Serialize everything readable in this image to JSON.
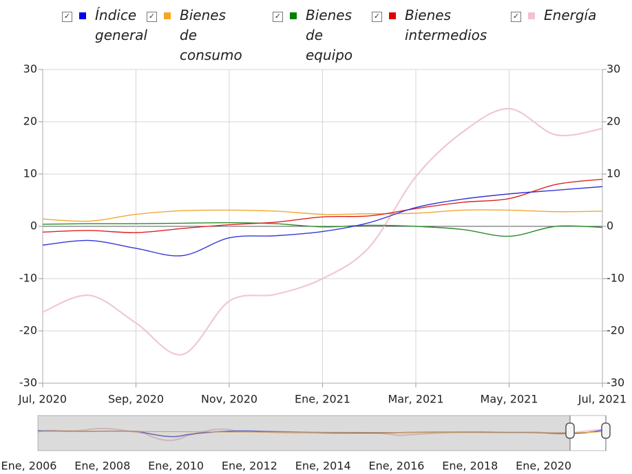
{
  "chart_data": {
    "type": "line",
    "categories": [
      "Jul, 2020",
      null,
      "Sep, 2020",
      null,
      "Nov, 2020",
      null,
      "Ene, 2021",
      null,
      "Mar, 2021",
      null,
      "May, 2021",
      null,
      "Jul, 2021"
    ],
    "series": [
      {
        "name": "Índice general",
        "color": "#3535d8",
        "legend_color": "#0000ee",
        "values": [
          -3.6,
          -2.7,
          -4.2,
          -5.6,
          -2.2,
          -1.8,
          -1.0,
          0.7,
          3.6,
          5.2,
          6.2,
          6.9,
          7.6
        ]
      },
      {
        "name": "Bienes de consumo",
        "color": "#f0a830",
        "legend_color": "#f5a623",
        "values": [
          1.4,
          1.0,
          2.3,
          3.0,
          3.1,
          2.9,
          2.3,
          2.4,
          2.5,
          3.1,
          3.1,
          2.8,
          2.9
        ]
      },
      {
        "name": "Bienes de equipo",
        "color": "#2a8a2a",
        "legend_color": "#008000",
        "values": [
          0.4,
          0.5,
          0.5,
          0.6,
          0.7,
          0.5,
          -0.1,
          0.2,
          0.0,
          -0.6,
          -1.9,
          0.0,
          -0.2
        ]
      },
      {
        "name": "Bienes intermedios",
        "color": "#dd2222",
        "legend_color": "#e00000",
        "values": [
          -1.1,
          -0.8,
          -1.2,
          -0.4,
          0.3,
          0.8,
          1.8,
          2.0,
          3.4,
          4.6,
          5.3,
          8.0,
          9.0
        ]
      },
      {
        "name": "Energía",
        "color": "#f0c8d0",
        "legend_color": "#f4c2cc",
        "values": [
          -16.4,
          -13.2,
          -18.5,
          -24.5,
          -14.3,
          -13.0,
          -10.0,
          -4.0,
          9.5,
          18.0,
          22.5,
          17.5,
          18.7
        ]
      }
    ],
    "ylim": [
      -30,
      30
    ],
    "yticks": [
      -30,
      -20,
      -10,
      0,
      10,
      20,
      30
    ],
    "y2lim": [
      -30,
      30
    ],
    "y2ticks": [
      -30,
      -20,
      -10,
      0,
      10,
      20,
      30
    ],
    "grid": true,
    "navigator": {
      "xticks": [
        "Ene, 2006",
        "Ene, 2008",
        "Ene, 2010",
        "Ene, 2012",
        "Ene, 2014",
        "Ene, 2016",
        "Ene, 2018",
        "Ene, 2020"
      ]
    }
  }
}
